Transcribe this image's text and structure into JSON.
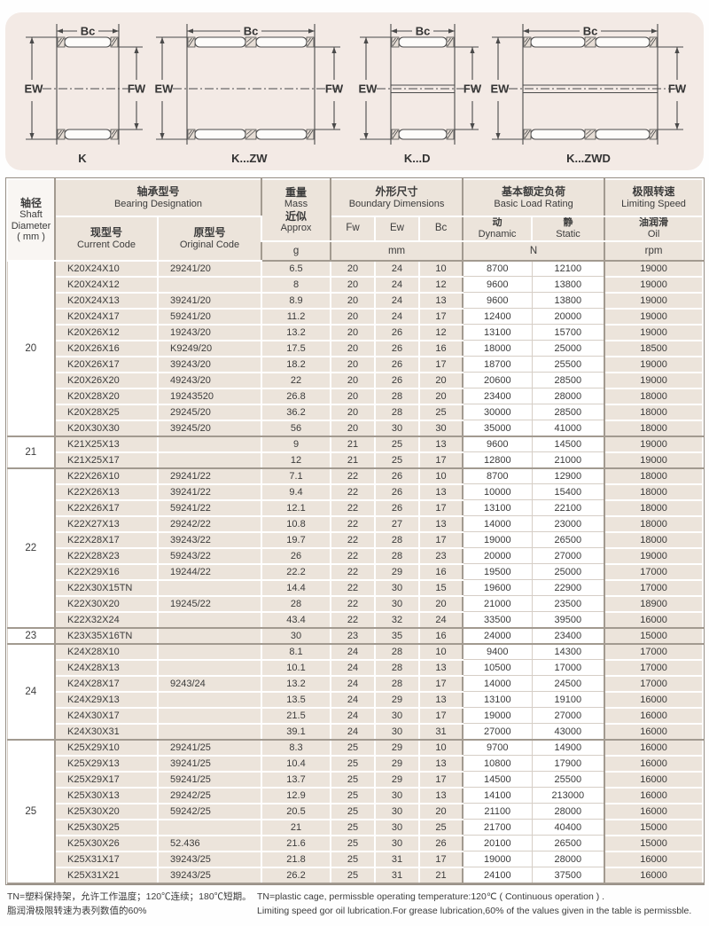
{
  "diagrams": {
    "dim_top": "Bc",
    "dim_left": "EW",
    "dim_right": "FW",
    "variants": [
      {
        "label": "K"
      },
      {
        "label": "K...ZW"
      },
      {
        "label": "K...D"
      },
      {
        "label": "K...ZWD"
      }
    ]
  },
  "table": {
    "header": {
      "shaft": {
        "zh": "轴径",
        "en1": "Shaft",
        "en2": "Diameter",
        "en3": "( mm )"
      },
      "bearing": {
        "zh": "轴承型号",
        "en": "Bearing Designation"
      },
      "current": {
        "zh": "现型号",
        "en": "Current Code"
      },
      "original": {
        "zh": "原型号",
        "en": "Original Code"
      },
      "mass": {
        "zh1": "重量",
        "en1": "Mass",
        "zh2": "近似",
        "en2": "Approx",
        "unit": "g"
      },
      "boundary": {
        "zh": "外形尺寸",
        "en": "Boundary Dimensions",
        "cols": [
          "Fw",
          "Ew",
          "Bc"
        ],
        "unit": "mm"
      },
      "load": {
        "zh": "基本额定负荷",
        "en": "Basic Load Rating",
        "dynamic": {
          "zh": "动",
          "en": "Dynamic"
        },
        "static": {
          "zh": "静",
          "en": "Static"
        },
        "unit": "N"
      },
      "speed": {
        "zh": "极限转速",
        "en": "Limiting Speed",
        "oil": {
          "zh": "油润滑",
          "en": "Oil"
        },
        "unit": "rpm"
      }
    },
    "groups": [
      {
        "shaft": "20",
        "rows": [
          [
            "K20X24X10",
            "29241/20",
            "6.5",
            "20",
            "24",
            "10",
            "8700",
            "12100",
            "19000"
          ],
          [
            "K20X24X12",
            "",
            "8",
            "20",
            "24",
            "12",
            "9600",
            "13800",
            "19000"
          ],
          [
            "K20X24X13",
            "39241/20",
            "8.9",
            "20",
            "24",
            "13",
            "9600",
            "13800",
            "19000"
          ],
          [
            "K20X24X17",
            "59241/20",
            "11.2",
            "20",
            "24",
            "17",
            "12400",
            "20000",
            "19000"
          ],
          [
            "K20X26X12",
            "19243/20",
            "13.2",
            "20",
            "26",
            "12",
            "13100",
            "15700",
            "19000"
          ],
          [
            "K20X26X16",
            "K9249/20",
            "17.5",
            "20",
            "26",
            "16",
            "18000",
            "25000",
            "18500"
          ],
          [
            "K20X26X17",
            "39243/20",
            "18.2",
            "20",
            "26",
            "17",
            "18700",
            "25500",
            "19000"
          ],
          [
            "K20X26X20",
            "49243/20",
            "22",
            "20",
            "26",
            "20",
            "20600",
            "28500",
            "19000"
          ],
          [
            "K20X28X20",
            "19243520",
            "26.8",
            "20",
            "28",
            "20",
            "23400",
            "28000",
            "18000"
          ],
          [
            "K20X28X25",
            "29245/20",
            "36.2",
            "20",
            "28",
            "25",
            "30000",
            "28500",
            "18000"
          ],
          [
            "K20X30X30",
            "39245/20",
            "56",
            "20",
            "30",
            "30",
            "35000",
            "41000",
            "18000"
          ]
        ]
      },
      {
        "shaft": "21",
        "rows": [
          [
            "K21X25X13",
            "",
            "9",
            "21",
            "25",
            "13",
            "9600",
            "14500",
            "19000"
          ],
          [
            "K21X25X17",
            "",
            "12",
            "21",
            "25",
            "17",
            "12800",
            "21000",
            "19000"
          ]
        ]
      },
      {
        "shaft": "22",
        "rows": [
          [
            "K22X26X10",
            "29241/22",
            "7.1",
            "22",
            "26",
            "10",
            "8700",
            "12900",
            "18000"
          ],
          [
            "K22X26X13",
            "39241/22",
            "9.4",
            "22",
            "26",
            "13",
            "10000",
            "15400",
            "18000"
          ],
          [
            "K22X26X17",
            "59241/22",
            "12.1",
            "22",
            "26",
            "17",
            "13100",
            "22100",
            "18000"
          ],
          [
            "K22X27X13",
            "29242/22",
            "10.8",
            "22",
            "27",
            "13",
            "14000",
            "23000",
            "18000"
          ],
          [
            "K22X28X17",
            "39243/22",
            "19.7",
            "22",
            "28",
            "17",
            "19000",
            "26500",
            "18000"
          ],
          [
            "K22X28X23",
            "59243/22",
            "26",
            "22",
            "28",
            "23",
            "20000",
            "27000",
            "19000"
          ],
          [
            "K22X29X16",
            "19244/22",
            "22.2",
            "22",
            "29",
            "16",
            "19500",
            "25000",
            "17000"
          ],
          [
            "K22X30X15TN",
            "",
            "14.4",
            "22",
            "30",
            "15",
            "19600",
            "22900",
            "17000"
          ],
          [
            "K22X30X20",
            "19245/22",
            "28",
            "22",
            "30",
            "20",
            "21000",
            "23500",
            "18900"
          ],
          [
            "K22X32X24",
            "",
            "43.4",
            "22",
            "32",
            "24",
            "33500",
            "39500",
            "16000"
          ]
        ]
      },
      {
        "shaft": "23",
        "rows": [
          [
            "K23X35X16TN",
            "",
            "30",
            "23",
            "35",
            "16",
            "24000",
            "23400",
            "15000"
          ]
        ]
      },
      {
        "shaft": "24",
        "rows": [
          [
            "K24X28X10",
            "",
            "8.1",
            "24",
            "28",
            "10",
            "9400",
            "14300",
            "17000"
          ],
          [
            "K24X28X13",
            "",
            "10.1",
            "24",
            "28",
            "13",
            "10500",
            "17000",
            "17000"
          ],
          [
            "K24X28X17",
            "9243/24",
            "13.2",
            "24",
            "28",
            "17",
            "14000",
            "24500",
            "17000"
          ],
          [
            "K24X29X13",
            "",
            "13.5",
            "24",
            "29",
            "13",
            "13100",
            "19100",
            "16000"
          ],
          [
            "K24X30X17",
            "",
            "21.5",
            "24",
            "30",
            "17",
            "19000",
            "27000",
            "16000"
          ],
          [
            "K24X30X31",
            "",
            "39.1",
            "24",
            "30",
            "31",
            "27000",
            "43000",
            "16000"
          ]
        ]
      },
      {
        "shaft": "25",
        "rows": [
          [
            "K25X29X10",
            "29241/25",
            "8.3",
            "25",
            "29",
            "10",
            "9700",
            "14900",
            "16000"
          ],
          [
            "K25X29X13",
            "39241/25",
            "10.4",
            "25",
            "29",
            "13",
            "10800",
            "17900",
            "16000"
          ],
          [
            "K25X29X17",
            "59241/25",
            "13.7",
            "25",
            "29",
            "17",
            "14500",
            "25500",
            "16000"
          ],
          [
            "K25X30X13",
            "29242/25",
            "12.9",
            "25",
            "30",
            "13",
            "14100",
            "213000",
            "16000"
          ],
          [
            "K25X30X20",
            "59242/25",
            "20.5",
            "25",
            "30",
            "20",
            "21100",
            "28000",
            "16000"
          ],
          [
            "K25X30X25",
            "",
            "21",
            "25",
            "30",
            "25",
            "21700",
            "40400",
            "15000"
          ],
          [
            "K25X30X26",
            "52.436",
            "21.6",
            "25",
            "30",
            "26",
            "20100",
            "26500",
            "15000"
          ],
          [
            "K25X31X17",
            "39243/25",
            "21.8",
            "25",
            "31",
            "17",
            "19000",
            "28000",
            "16000"
          ],
          [
            "K25X31X21",
            "39243/25",
            "26.2",
            "25",
            "31",
            "21",
            "24100",
            "37500",
            "16000"
          ]
        ]
      }
    ]
  },
  "notes": {
    "zh1": "TN=塑料保持架，允许工作温度；120℃连续；180℃短期。",
    "zh2": "脂润滑极限转速为表列数值的60%",
    "en1": "TN=plastic cage, permissble operating temperature:120℃ ( Continuous operation ) .",
    "en2": "Limiting speed gor oil lubrication.For grease lubrication,60% of the values given in the table is permissble."
  },
  "colors": {
    "panel_bg": "#f3eae5",
    "cell_beige": "#ece4db",
    "separator_gray": "#a29a90"
  }
}
